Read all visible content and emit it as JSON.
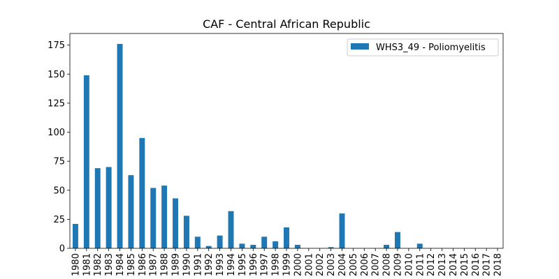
{
  "chart_data": {
    "type": "bar",
    "title": "CAF - Central African Republic",
    "xlabel": "",
    "ylabel": "",
    "categories": [
      "1980",
      "1981",
      "1982",
      "1983",
      "1984",
      "1985",
      "1986",
      "1987",
      "1988",
      "1989",
      "1990",
      "1991",
      "1992",
      "1993",
      "1994",
      "1995",
      "1996",
      "1997",
      "1998",
      "1999",
      "2000",
      "2001",
      "2002",
      "2003",
      "2004",
      "2005",
      "2006",
      "2007",
      "2008",
      "2009",
      "2010",
      "2011",
      "2012",
      "2013",
      "2014",
      "2015",
      "2016",
      "2017",
      "2018"
    ],
    "series": [
      {
        "name": "WHS3_49 - Poliomyelitis",
        "color": "#1f77b4",
        "values": [
          21,
          149,
          69,
          70,
          176,
          63,
          95,
          52,
          54,
          43,
          28,
          10,
          2,
          11,
          32,
          4,
          3,
          10,
          6,
          18,
          3,
          0,
          0,
          1,
          30,
          0,
          0,
          0,
          3,
          14,
          0,
          4,
          0,
          0,
          0,
          0,
          0,
          0,
          0
        ]
      }
    ],
    "ylim": [
      0,
      185
    ],
    "yticks": [
      0,
      25,
      50,
      75,
      100,
      125,
      150,
      175
    ],
    "grid": false,
    "legend_position": "top-right"
  }
}
